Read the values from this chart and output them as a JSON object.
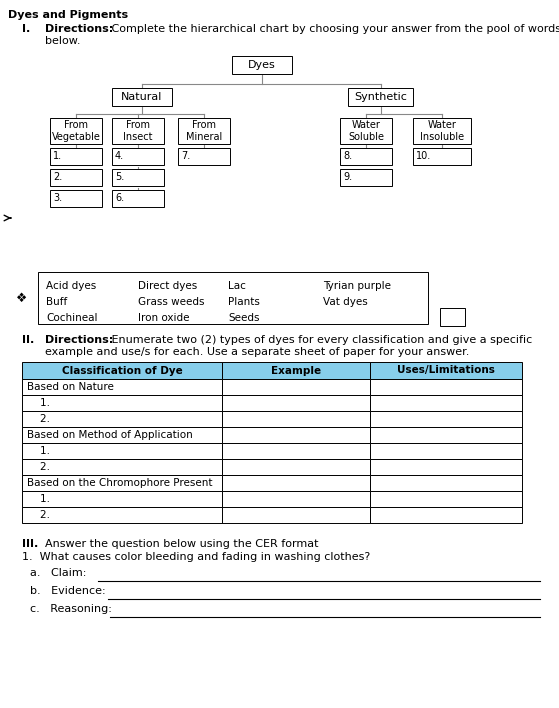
{
  "title": "Dyes and Pigments",
  "section1_label": "I.",
  "section1_bold": "Directions:",
  "section1_text1": " Complete the hierarchical chart by choosing your answer from the pool of words",
  "section1_text2": "below.",
  "section2_label": "II.",
  "section2_bold": "Directions:",
  "section2_text1": " Enumerate two (2) types of dyes for every classification and give a specific",
  "section2_text2": "example and use/s for each. Use a separate sheet of paper for your answer.",
  "section3_label": "III.",
  "section3_text": "Answer the question below using the CER format",
  "question": "1.  What causes color bleeding and fading in washing clothes?",
  "claim_label": "a.   Claim: ",
  "evidence_label": "b.   Evidence: ",
  "reasoning_label": "c.   Reasoning: ",
  "pool_words": [
    [
      "Acid dyes",
      "Direct dyes",
      "Lac",
      "Tyrian purple"
    ],
    [
      "Buff",
      "Grass weeds",
      "Plants",
      "Vat dyes"
    ],
    [
      "Cochineal",
      "Iron oxide",
      "Seeds",
      ""
    ]
  ],
  "table_headers": [
    "Classification of Dye",
    "Example",
    "Uses/Limitations"
  ],
  "table_header_color": "#87CEEB",
  "bg_color": "#ffffff",
  "line_color": "#808080"
}
